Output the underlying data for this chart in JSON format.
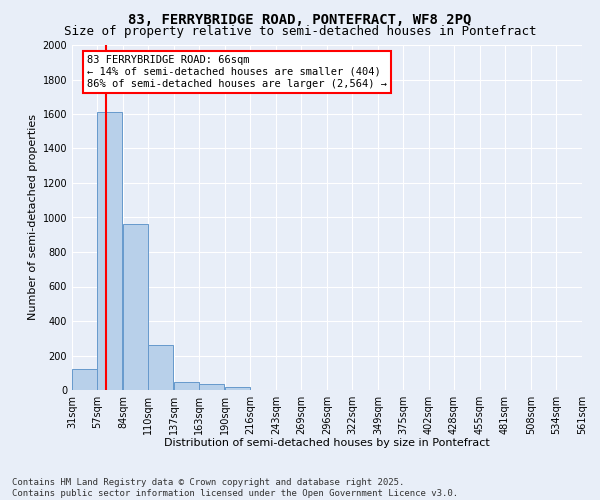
{
  "title1": "83, FERRYBRIDGE ROAD, PONTEFRACT, WF8 2PQ",
  "title2": "Size of property relative to semi-detached houses in Pontefract",
  "xlabel": "Distribution of semi-detached houses by size in Pontefract",
  "ylabel": "Number of semi-detached properties",
  "bins": [
    31,
    57,
    84,
    110,
    137,
    163,
    190,
    216,
    243,
    269,
    296,
    322,
    349,
    375,
    402,
    428,
    455,
    481,
    508,
    534,
    561
  ],
  "counts": [
    120,
    1610,
    960,
    260,
    45,
    35,
    18,
    0,
    0,
    0,
    0,
    0,
    0,
    0,
    0,
    0,
    0,
    0,
    0,
    0
  ],
  "bar_color": "#b8d0ea",
  "bar_edge_color": "#6699cc",
  "vline_x": 66,
  "vline_color": "red",
  "annotation_title": "83 FERRYBRIDGE ROAD: 66sqm",
  "annotation_line1": "← 14% of semi-detached houses are smaller (404)",
  "annotation_line2": "86% of semi-detached houses are larger (2,564) →",
  "annotation_box_color": "white",
  "annotation_box_edge_color": "red",
  "ylim": [
    0,
    2000
  ],
  "yticks": [
    0,
    200,
    400,
    600,
    800,
    1000,
    1200,
    1400,
    1600,
    1800,
    2000
  ],
  "background_color": "#e8eef8",
  "grid_color": "white",
  "footer1": "Contains HM Land Registry data © Crown copyright and database right 2025.",
  "footer2": "Contains public sector information licensed under the Open Government Licence v3.0.",
  "title_fontsize": 10,
  "subtitle_fontsize": 9,
  "axis_label_fontsize": 8,
  "tick_fontsize": 7,
  "annotation_fontsize": 7.5,
  "footer_fontsize": 6.5
}
